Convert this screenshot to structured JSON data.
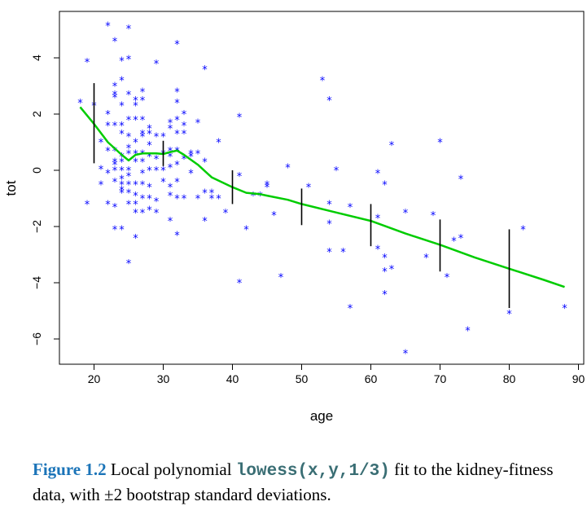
{
  "chart_data": {
    "type": "scatter",
    "xlabel": "age",
    "ylabel": "tot",
    "xlim": [
      15,
      90
    ],
    "ylim": [
      -7,
      5.5
    ],
    "x_ticks": [
      20,
      30,
      40,
      50,
      60,
      70,
      80,
      90
    ],
    "y_ticks": [
      -6,
      -4,
      -2,
      0,
      2,
      4
    ],
    "point_marker": "*",
    "point_color": "#0000ff",
    "curve_color": "#00cc00",
    "errorbar_color": "#000000",
    "points": [
      [
        18,
        2.4
      ],
      [
        19,
        3.85
      ],
      [
        19,
        -1.2
      ],
      [
        20,
        2.3
      ],
      [
        21,
        0.05
      ],
      [
        21,
        -0.5
      ],
      [
        21,
        1.0
      ],
      [
        22,
        5.15
      ],
      [
        22,
        2.0
      ],
      [
        22,
        1.6
      ],
      [
        22,
        0.7
      ],
      [
        22,
        -0.1
      ],
      [
        22,
        -1.2
      ],
      [
        23,
        4.6
      ],
      [
        23,
        3.0
      ],
      [
        23,
        2.7
      ],
      [
        23,
        2.6
      ],
      [
        23,
        1.6
      ],
      [
        23,
        0.7
      ],
      [
        23,
        0.3
      ],
      [
        23,
        0.2
      ],
      [
        23,
        0.0
      ],
      [
        23,
        -0.4
      ],
      [
        23,
        -1.3
      ],
      [
        23,
        -2.1
      ],
      [
        24,
        3.9
      ],
      [
        24,
        3.2
      ],
      [
        24,
        2.3
      ],
      [
        24,
        1.6
      ],
      [
        24,
        1.3
      ],
      [
        24,
        0.5
      ],
      [
        24,
        0.3
      ],
      [
        24,
        0.0
      ],
      [
        24,
        -0.3
      ],
      [
        24,
        -0.5
      ],
      [
        24,
        -0.7
      ],
      [
        24,
        -0.8
      ],
      [
        24,
        -2.1
      ],
      [
        25,
        5.05
      ],
      [
        25,
        3.95
      ],
      [
        25,
        2.7
      ],
      [
        25,
        1.8
      ],
      [
        25,
        1.2
      ],
      [
        25,
        0.8
      ],
      [
        25,
        0.6
      ],
      [
        25,
        0.0
      ],
      [
        25,
        -0.2
      ],
      [
        25,
        -0.5
      ],
      [
        25,
        -0.8
      ],
      [
        25,
        -1.2
      ],
      [
        25,
        -3.3
      ],
      [
        26,
        2.5
      ],
      [
        26,
        2.3
      ],
      [
        26,
        1.8
      ],
      [
        26,
        1.0
      ],
      [
        26,
        0.6
      ],
      [
        26,
        0.3
      ],
      [
        26,
        -0.5
      ],
      [
        26,
        -0.9
      ],
      [
        26,
        -1.2
      ],
      [
        26,
        -1.5
      ],
      [
        26,
        -2.4
      ],
      [
        27,
        2.8
      ],
      [
        27,
        2.5
      ],
      [
        27,
        1.8
      ],
      [
        27,
        1.3
      ],
      [
        27,
        1.2
      ],
      [
        27,
        0.6
      ],
      [
        27,
        0.3
      ],
      [
        27,
        -0.1
      ],
      [
        27,
        -0.5
      ],
      [
        27,
        -1.0
      ],
      [
        27,
        -1.5
      ],
      [
        28,
        1.5
      ],
      [
        28,
        1.3
      ],
      [
        28,
        0.9
      ],
      [
        28,
        0.5
      ],
      [
        28,
        0.0
      ],
      [
        28,
        -0.6
      ],
      [
        28,
        -1.0
      ],
      [
        28,
        -1.4
      ],
      [
        29,
        3.8
      ],
      [
        29,
        1.2
      ],
      [
        29,
        0.4
      ],
      [
        29,
        0.0
      ],
      [
        29,
        -1.1
      ],
      [
        29,
        -1.5
      ],
      [
        30,
        1.2
      ],
      [
        30,
        0.6
      ],
      [
        30,
        0.0
      ],
      [
        30,
        -0.4
      ],
      [
        31,
        1.7
      ],
      [
        31,
        1.5
      ],
      [
        31,
        0.7
      ],
      [
        31,
        0.5
      ],
      [
        31,
        0.1
      ],
      [
        31,
        -0.6
      ],
      [
        31,
        -0.9
      ],
      [
        31,
        -1.8
      ],
      [
        32,
        4.5
      ],
      [
        32,
        2.8
      ],
      [
        32,
        2.4
      ],
      [
        32,
        1.8
      ],
      [
        32,
        1.3
      ],
      [
        32,
        0.7
      ],
      [
        32,
        0.2
      ],
      [
        32,
        -0.4
      ],
      [
        32,
        -1.0
      ],
      [
        32,
        -2.3
      ],
      [
        33,
        2.0
      ],
      [
        33,
        1.6
      ],
      [
        33,
        1.3
      ],
      [
        33,
        0.4
      ],
      [
        33,
        -1.0
      ],
      [
        34,
        0.6
      ],
      [
        34,
        0.5
      ],
      [
        34,
        -0.1
      ],
      [
        35,
        1.7
      ],
      [
        35,
        0.6
      ],
      [
        35,
        -1.0
      ],
      [
        36,
        3.6
      ],
      [
        36,
        0.3
      ],
      [
        36,
        -0.8
      ],
      [
        36,
        -1.8
      ],
      [
        37,
        -0.8
      ],
      [
        37,
        -1.0
      ],
      [
        38,
        1.0
      ],
      [
        38,
        -1.0
      ],
      [
        39,
        -1.5
      ],
      [
        41,
        1.9
      ],
      [
        41,
        -0.2
      ],
      [
        41,
        -4.0
      ],
      [
        42,
        -2.1
      ],
      [
        43,
        -0.9
      ],
      [
        44,
        -0.9
      ],
      [
        45,
        -0.5
      ],
      [
        45,
        -0.6
      ],
      [
        46,
        -1.6
      ],
      [
        47,
        -3.8
      ],
      [
        48,
        0.1
      ],
      [
        51,
        -0.6
      ],
      [
        53,
        3.2
      ],
      [
        54,
        2.5
      ],
      [
        54,
        -1.2
      ],
      [
        54,
        -1.9
      ],
      [
        54,
        -2.9
      ],
      [
        55,
        0.0
      ],
      [
        56,
        -2.9
      ],
      [
        57,
        -4.9
      ],
      [
        57,
        -1.3
      ],
      [
        61,
        -0.1
      ],
      [
        61,
        -1.7
      ],
      [
        61,
        -2.8
      ],
      [
        62,
        -0.5
      ],
      [
        62,
        -3.1
      ],
      [
        62,
        -4.4
      ],
      [
        62,
        -3.6
      ],
      [
        63,
        0.9
      ],
      [
        63,
        -3.5
      ],
      [
        65,
        -1.5
      ],
      [
        65,
        -6.5
      ],
      [
        68,
        -3.1
      ],
      [
        69,
        -1.6
      ],
      [
        70,
        1.0
      ],
      [
        71,
        -3.8
      ],
      [
        72,
        -2.5
      ],
      [
        73,
        -0.3
      ],
      [
        73,
        -2.4
      ],
      [
        74,
        -5.7
      ],
      [
        80,
        -5.1
      ],
      [
        82,
        -2.1
      ],
      [
        88,
        -4.9
      ]
    ],
    "lowess_curve": [
      [
        18,
        2.25
      ],
      [
        20,
        1.65
      ],
      [
        22,
        1.0
      ],
      [
        24,
        0.55
      ],
      [
        25,
        0.35
      ],
      [
        26,
        0.55
      ],
      [
        27,
        0.6
      ],
      [
        28,
        0.6
      ],
      [
        29,
        0.6
      ],
      [
        30,
        0.58
      ],
      [
        31,
        0.65
      ],
      [
        32,
        0.7
      ],
      [
        33,
        0.55
      ],
      [
        35,
        0.2
      ],
      [
        37,
        -0.25
      ],
      [
        40,
        -0.6
      ],
      [
        42,
        -0.8
      ],
      [
        44,
        -0.85
      ],
      [
        45,
        -0.9
      ],
      [
        48,
        -1.05
      ],
      [
        50,
        -1.2
      ],
      [
        55,
        -1.5
      ],
      [
        60,
        -1.8
      ],
      [
        65,
        -2.25
      ],
      [
        70,
        -2.65
      ],
      [
        75,
        -3.1
      ],
      [
        80,
        -3.5
      ],
      [
        85,
        -3.9
      ],
      [
        88,
        -4.15
      ]
    ],
    "error_bars": [
      {
        "x": 20,
        "low": 0.25,
        "high": 3.1
      },
      {
        "x": 30,
        "low": 0.15,
        "high": 1.05
      },
      {
        "x": 40,
        "low": -1.2,
        "high": 0.0
      },
      {
        "x": 50,
        "low": -1.95,
        "high": -0.65
      },
      {
        "x": 60,
        "low": -2.7,
        "high": -1.2
      },
      {
        "x": 70,
        "low": -3.6,
        "high": -1.75
      },
      {
        "x": 80,
        "low": -4.9,
        "high": -2.1
      }
    ]
  },
  "caption": {
    "label": "Figure 1.2",
    "text_before": "Local polynomial ",
    "code": "lowess(x,y,1/3)",
    "text_after": " fit to the kidney-fitness data, with ±2 bootstrap standard deviations."
  }
}
